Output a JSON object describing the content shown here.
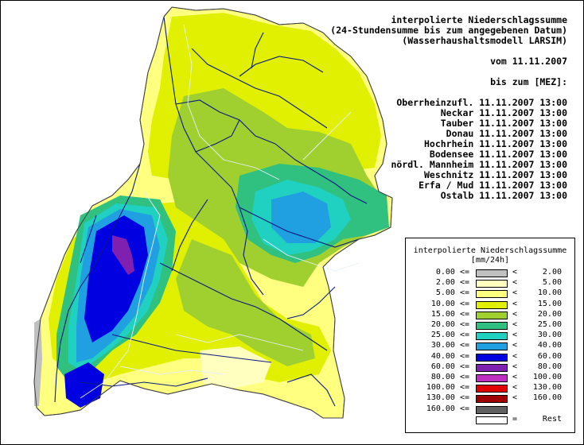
{
  "header": {
    "title": "interpolierte Niederschlagssumme",
    "subtitle": "(24-Stundensumme bis zum angegebenen Datum)",
    "model": "(Wasserhaushaltsmodell LARSIM)",
    "date_line": "vom 11.11.2007",
    "until_label": "bis zum [MEZ]:",
    "regions": [
      "Oberrheinzufl. 11.11.2007 13:00",
      "Neckar 11.11.2007 13:00",
      "Tauber 11.11.2007 13:00",
      "Donau 11.11.2007 13:00",
      "Hochrhein 11.11.2007 13:00",
      "Bodensee 11.11.2007 13:00",
      "nördl. Mannheim 11.11.2007 13:00",
      "Weschnitz 11.11.2007 13:00",
      "Erfa / Mud 11.11.2007 13:00",
      "Ostalb 11.11.2007 13:00"
    ]
  },
  "legend": {
    "title": "interpolierte Niederschlagssumme",
    "unit": "[mm/24h]",
    "classes": [
      {
        "low": "0.00 <=",
        "op": "<",
        "high": "2.00",
        "color": "#c0c0c0"
      },
      {
        "low": "2.00 <=",
        "op": "<",
        "high": "5.00",
        "color": "#ffffc0"
      },
      {
        "low": "5.00 <=",
        "op": "<",
        "high": "10.00",
        "color": "#ffff80"
      },
      {
        "low": "10.00 <=",
        "op": "<",
        "high": "15.00",
        "color": "#e0f000"
      },
      {
        "low": "15.00 <=",
        "op": "<",
        "high": "20.00",
        "color": "#a0d030"
      },
      {
        "low": "20.00 <=",
        "op": "<",
        "high": "25.00",
        "color": "#30c080"
      },
      {
        "low": "25.00 <=",
        "op": "<",
        "high": "30.00",
        "color": "#20d0c0"
      },
      {
        "low": "30.00 <=",
        "op": "<",
        "high": "40.00",
        "color": "#20a0e0"
      },
      {
        "low": "40.00 <=",
        "op": "<",
        "high": "60.00",
        "color": "#0000e0"
      },
      {
        "low": "60.00 <=",
        "op": "<",
        "high": "80.00",
        "color": "#8020b0"
      },
      {
        "low": "80.00 <=",
        "op": "<",
        "high": "100.00",
        "color": "#c030c0"
      },
      {
        "low": "100.00 <=",
        "op": "<",
        "high": "130.00",
        "color": "#e00000"
      },
      {
        "low": "130.00 <=",
        "op": "<",
        "high": "160.00",
        "color": "#a00000"
      },
      {
        "low": "160.00 <=",
        "op": "",
        "high": "",
        "color": "#606060"
      },
      {
        "low": "",
        "op": "=",
        "high": "Rest",
        "color": "#ffffff"
      }
    ]
  }
}
